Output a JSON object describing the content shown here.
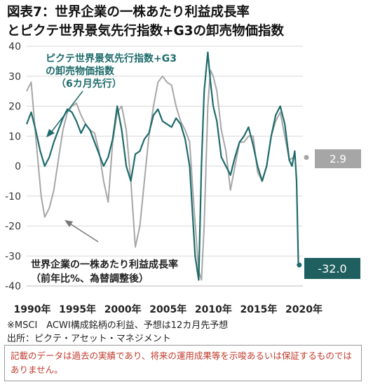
{
  "title_line1": "図表7：世界企業の一株あたり利益成長率",
  "title_line2": "とピクテ世界景気先行指数+G3の卸売物価指数",
  "chart_data": {
    "type": "line",
    "ylim": [
      -40,
      40
    ],
    "xlim": [
      1990,
      2020.5
    ],
    "y_ticks": [
      40,
      30,
      20,
      10,
      0,
      -10,
      -20,
      -30,
      -40
    ],
    "x_ticks": [
      {
        "value": 1990,
        "label": "1990年"
      },
      {
        "value": 1995,
        "label": "1995年"
      },
      {
        "value": 2000,
        "label": "2000年"
      },
      {
        "value": 2005,
        "label": "2005年"
      },
      {
        "value": 2010,
        "label": "2010年"
      },
      {
        "value": 2015,
        "label": "2015年"
      },
      {
        "value": 2020,
        "label": "2020年"
      }
    ],
    "series": [
      {
        "name": "世界企業の一株あたり利益成長率（前年比%、為替調整後）",
        "color": "#a6a6a6",
        "x": [
          1990,
          1990.5,
          1991,
          1991.3,
          1991.6,
          1992,
          1992.5,
          1993,
          1993.5,
          1994,
          1994.5,
          1995,
          1995.5,
          1996,
          1996.5,
          1997,
          1997.5,
          1998,
          1998.5,
          1999,
          1999.5,
          2000,
          2000.5,
          2001,
          2001.5,
          2002,
          2002.5,
          2003,
          2003.5,
          2004,
          2004.5,
          2005,
          2005.5,
          2006,
          2006.5,
          2007,
          2007.5,
          2008,
          2008.5,
          2009,
          2009.3,
          2009.6,
          2010,
          2010.3,
          2010.6,
          2011,
          2011.5,
          2012,
          2012.5,
          2013,
          2013.5,
          2014,
          2014.5,
          2015,
          2015.5,
          2016,
          2016.5,
          2017,
          2017.5,
          2018,
          2018.5,
          2019,
          2019.5
        ],
        "y": [
          25,
          28,
          10,
          0,
          -10,
          -17,
          -14,
          -8,
          2,
          12,
          18,
          20,
          21,
          17,
          14,
          12,
          11,
          5,
          -5,
          -12,
          8,
          18,
          20,
          12,
          -5,
          -27,
          -20,
          -5,
          10,
          20,
          28,
          30,
          28,
          27,
          20,
          15,
          12,
          8,
          -15,
          -35,
          -38,
          -20,
          20,
          32,
          30,
          25,
          12,
          5,
          -8,
          0,
          8,
          8,
          10,
          10,
          -2,
          -5,
          0,
          10,
          15,
          18,
          10,
          2,
          3
        ]
      },
      {
        "name": "ピクテ世界景気先行指数+G3の卸売物価指数（6カ月先行）",
        "color": "#1f6b6b",
        "x": [
          1990,
          1990.5,
          1991,
          1991.5,
          1992,
          1992.5,
          1993,
          1993.5,
          1994,
          1994.5,
          1995,
          1995.5,
          1996,
          1996.5,
          1997,
          1997.5,
          1998,
          1998.5,
          1999,
          1999.5,
          2000,
          2000.5,
          2001,
          2001.5,
          2002,
          2002.5,
          2003,
          2003.5,
          2004,
          2004.5,
          2005,
          2005.5,
          2006,
          2006.5,
          2007,
          2007.5,
          2008,
          2008.3,
          2008.6,
          2009,
          2009.3,
          2009.6,
          2010,
          2010.3,
          2010.6,
          2011,
          2011.5,
          2012,
          2012.5,
          2013,
          2013.5,
          2014,
          2014.5,
          2015,
          2015.5,
          2016,
          2016.5,
          2017,
          2017.5,
          2018,
          2018.5,
          2019,
          2019.3,
          2019.6,
          2019.8,
          2020,
          2020.1
        ],
        "y": [
          14,
          18,
          12,
          5,
          0,
          3,
          8,
          12,
          16,
          19,
          18,
          15,
          11,
          14,
          12,
          8,
          4,
          0,
          3,
          9,
          20,
          12,
          0,
          -5,
          4,
          5,
          9,
          11,
          17,
          19,
          15,
          14,
          13,
          16,
          14,
          9,
          0,
          -15,
          -30,
          -38,
          0,
          25,
          38,
          28,
          20,
          15,
          3,
          0,
          -3,
          3,
          8,
          10,
          13,
          7,
          0,
          -5,
          0,
          10,
          17,
          20,
          14,
          2,
          0,
          5,
          -5,
          -32,
          -33
        ]
      }
    ],
    "annotations": [
      {
        "text_line1": "ピクテ世界景気先行指数+G3",
        "text_line2": "の卸売物価指数",
        "text_line3": "（6カ月先行）"
      },
      {
        "text_line1": "世界企業の一株あたり利益成長率",
        "text_line2": "（前年比%、為替調整後）"
      }
    ],
    "end_labels": [
      {
        "series": 0,
        "value": "2.9"
      },
      {
        "series": 1,
        "value": "-32.0"
      }
    ]
  },
  "notes": {
    "line1": "※MSCI　ACWI構成銘柄の利益、予想は12カ月先予想",
    "line2": "出所：ピクテ・アセット・マネジメント"
  },
  "disclaimer": "記載のデータは過去の実績であり、将来の運用成果等を示唆あるいは保証するものではありません。",
  "colors": {
    "teal": "#1f6b6b",
    "gray": "#a6a6a6",
    "red_text": "#c0392b",
    "dark_label_bg": "#1f5f5f",
    "gray_label_bg": "#a6a6a6"
  }
}
